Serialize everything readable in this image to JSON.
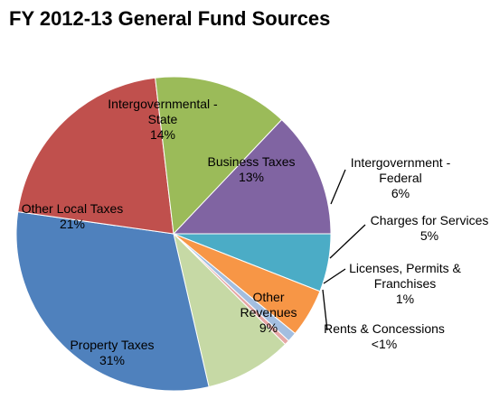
{
  "chart_data": {
    "type": "pie",
    "title": "FY 2012-13 General Fund Sources",
    "slices": [
      {
        "name": "Intergovernment - Federal",
        "label_lines": [
          "Intergovernment -",
          "Federal"
        ],
        "value_label": "6%",
        "value": 6,
        "color": "#4BACC6"
      },
      {
        "name": "Charges for Services",
        "label_lines": [
          "Charges for Services"
        ],
        "value_label": "5%",
        "value": 5,
        "color": "#F79646"
      },
      {
        "name": "Licenses, Permits & Franchises",
        "label_lines": [
          "Licenses, Permits &",
          "Franchises"
        ],
        "value_label": "1%",
        "value": 1,
        "color": "#A3BEE0"
      },
      {
        "name": "Rents & Concessions",
        "label_lines": [
          "Rents & Concessions"
        ],
        "value_label": "<1%",
        "value": 0.5,
        "color": "#E6A7A5"
      },
      {
        "name": "Other Revenues",
        "label_lines": [
          "Other",
          "Revenues"
        ],
        "value_label": "9%",
        "value": 9,
        "color": "#C6D9A5"
      },
      {
        "name": "Property Taxes",
        "label_lines": [
          "Property Taxes"
        ],
        "value_label": "31%",
        "value": 31,
        "color": "#4F81BD"
      },
      {
        "name": "Other Local Taxes",
        "label_lines": [
          "Other Local Taxes"
        ],
        "value_label": "21%",
        "value": 21,
        "color": "#C0504D"
      },
      {
        "name": "Intergovernmental - State",
        "label_lines": [
          "Intergovernmental -",
          "State"
        ],
        "value_label": "14%",
        "value": 14,
        "color": "#9BBB59"
      },
      {
        "name": "Business Taxes",
        "label_lines": [
          "Business Taxes"
        ],
        "value_label": "13%",
        "value": 13,
        "color": "#8064A2"
      }
    ]
  }
}
